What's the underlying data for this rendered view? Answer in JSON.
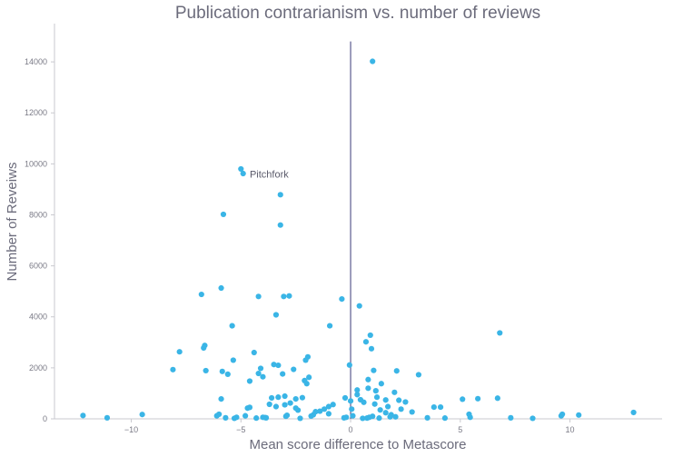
{
  "chart_data": {
    "type": "scatter",
    "title": "Publication contrarianism vs. number of reviews",
    "xlabel": "Mean score difference to Metascore",
    "ylabel": "Number of Reveiws",
    "xlim": [
      -13.5,
      14.2
    ],
    "ylim": [
      0,
      15500
    ],
    "xticks": [
      -10,
      -5,
      0,
      5,
      10
    ],
    "xtick_labels": [
      "−10",
      "−5",
      "0",
      "5",
      "10"
    ],
    "yticks": [
      0,
      2000,
      4000,
      6000,
      8000,
      10000,
      12000,
      14000
    ],
    "ytick_labels": [
      "0",
      "2000",
      "4000",
      "6000",
      "8000",
      "10000",
      "12000",
      "14000"
    ],
    "grid": false,
    "point_color": "#3ab5e6",
    "reference_line": {
      "x": 0,
      "y_range": [
        0,
        14800
      ],
      "color": "#5b5b8f"
    },
    "annotations": [
      {
        "text": "Pitchfork",
        "x": -4.6,
        "y": 9600
      }
    ],
    "points": [
      {
        "x": -12.2,
        "y": 130
      },
      {
        "x": -11.1,
        "y": 40
      },
      {
        "x": -9.5,
        "y": 170
      },
      {
        "x": -8.1,
        "y": 1930
      },
      {
        "x": -7.8,
        "y": 2630
      },
      {
        "x": -6.8,
        "y": 4880
      },
      {
        "x": -6.7,
        "y": 2780
      },
      {
        "x": -6.65,
        "y": 2880
      },
      {
        "x": -6.6,
        "y": 1890
      },
      {
        "x": -6.1,
        "y": 120
      },
      {
        "x": -6.0,
        "y": 180
      },
      {
        "x": -5.9,
        "y": 5130
      },
      {
        "x": -5.9,
        "y": 780
      },
      {
        "x": -5.85,
        "y": 1860
      },
      {
        "x": -5.8,
        "y": 8020
      },
      {
        "x": -5.7,
        "y": 40
      },
      {
        "x": -5.6,
        "y": 1750
      },
      {
        "x": -5.4,
        "y": 3650
      },
      {
        "x": -5.35,
        "y": 2300
      },
      {
        "x": -5.3,
        "y": 20
      },
      {
        "x": -5.2,
        "y": 60
      },
      {
        "x": -5.0,
        "y": 9800
      },
      {
        "x": -4.9,
        "y": 9620
      },
      {
        "x": -4.8,
        "y": 120
      },
      {
        "x": -4.7,
        "y": 420
      },
      {
        "x": -4.6,
        "y": 450
      },
      {
        "x": -4.6,
        "y": 1480
      },
      {
        "x": -4.4,
        "y": 2600
      },
      {
        "x": -4.3,
        "y": 30
      },
      {
        "x": -4.2,
        "y": 4800
      },
      {
        "x": -4.2,
        "y": 1780
      },
      {
        "x": -4.1,
        "y": 1980
      },
      {
        "x": -4.0,
        "y": 60
      },
      {
        "x": -4.0,
        "y": 1650
      },
      {
        "x": -3.9,
        "y": 50
      },
      {
        "x": -3.85,
        "y": 40
      },
      {
        "x": -3.7,
        "y": 570
      },
      {
        "x": -3.6,
        "y": 820
      },
      {
        "x": -3.5,
        "y": 2130
      },
      {
        "x": -3.4,
        "y": 4080
      },
      {
        "x": -3.4,
        "y": 480
      },
      {
        "x": -3.3,
        "y": 850
      },
      {
        "x": -3.3,
        "y": 2100
      },
      {
        "x": -3.2,
        "y": 8790
      },
      {
        "x": -3.2,
        "y": 7600
      },
      {
        "x": -3.1,
        "y": 1760
      },
      {
        "x": -3.05,
        "y": 4800
      },
      {
        "x": -3.0,
        "y": 550
      },
      {
        "x": -3.0,
        "y": 890
      },
      {
        "x": -2.95,
        "y": 100
      },
      {
        "x": -2.9,
        "y": 140
      },
      {
        "x": -2.8,
        "y": 4820
      },
      {
        "x": -2.75,
        "y": 620
      },
      {
        "x": -2.6,
        "y": 1940
      },
      {
        "x": -2.5,
        "y": 780
      },
      {
        "x": -2.5,
        "y": 420
      },
      {
        "x": -2.4,
        "y": 340
      },
      {
        "x": -2.3,
        "y": 20
      },
      {
        "x": -2.2,
        "y": 830
      },
      {
        "x": -2.1,
        "y": 1500
      },
      {
        "x": -2.05,
        "y": 2300
      },
      {
        "x": -2.0,
        "y": 1380
      },
      {
        "x": -1.95,
        "y": 2430
      },
      {
        "x": -1.9,
        "y": 1630
      },
      {
        "x": -1.8,
        "y": 110
      },
      {
        "x": -1.7,
        "y": 160
      },
      {
        "x": -1.6,
        "y": 280
      },
      {
        "x": -1.4,
        "y": 300
      },
      {
        "x": -1.2,
        "y": 380
      },
      {
        "x": -1.0,
        "y": 480
      },
      {
        "x": -1.0,
        "y": 200
      },
      {
        "x": -0.95,
        "y": 3650
      },
      {
        "x": -0.8,
        "y": 560
      },
      {
        "x": -0.4,
        "y": 4700
      },
      {
        "x": -0.3,
        "y": 40
      },
      {
        "x": -0.25,
        "y": 820
      },
      {
        "x": -0.2,
        "y": 60
      },
      {
        "x": -0.05,
        "y": 2110
      },
      {
        "x": 0.0,
        "y": 700
      },
      {
        "x": 0.05,
        "y": 380
      },
      {
        "x": 0.1,
        "y": 120
      },
      {
        "x": 0.3,
        "y": 950
      },
      {
        "x": 0.3,
        "y": 1130
      },
      {
        "x": 0.4,
        "y": 4430
      },
      {
        "x": 0.45,
        "y": 750
      },
      {
        "x": 0.55,
        "y": 20
      },
      {
        "x": 0.6,
        "y": 650
      },
      {
        "x": 0.7,
        "y": 3020
      },
      {
        "x": 0.75,
        "y": 30
      },
      {
        "x": 0.8,
        "y": 1540
      },
      {
        "x": 0.8,
        "y": 1200
      },
      {
        "x": 0.85,
        "y": 60
      },
      {
        "x": 0.9,
        "y": 3280
      },
      {
        "x": 0.95,
        "y": 2750
      },
      {
        "x": 1.0,
        "y": 14020
      },
      {
        "x": 1.0,
        "y": 100
      },
      {
        "x": 1.05,
        "y": 1900
      },
      {
        "x": 1.1,
        "y": 580
      },
      {
        "x": 1.15,
        "y": 1100
      },
      {
        "x": 1.2,
        "y": 850
      },
      {
        "x": 1.3,
        "y": 30
      },
      {
        "x": 1.35,
        "y": 350
      },
      {
        "x": 1.4,
        "y": 1380
      },
      {
        "x": 1.6,
        "y": 240
      },
      {
        "x": 1.6,
        "y": 740
      },
      {
        "x": 1.7,
        "y": 480
      },
      {
        "x": 1.8,
        "y": 80
      },
      {
        "x": 1.85,
        "y": 160
      },
      {
        "x": 2.0,
        "y": 1040
      },
      {
        "x": 2.05,
        "y": 80
      },
      {
        "x": 2.1,
        "y": 1880
      },
      {
        "x": 2.2,
        "y": 730
      },
      {
        "x": 2.3,
        "y": 380
      },
      {
        "x": 2.5,
        "y": 660
      },
      {
        "x": 2.8,
        "y": 270
      },
      {
        "x": 3.1,
        "y": 1730
      },
      {
        "x": 3.5,
        "y": 40
      },
      {
        "x": 3.8,
        "y": 460
      },
      {
        "x": 4.1,
        "y": 460
      },
      {
        "x": 4.3,
        "y": 30
      },
      {
        "x": 5.1,
        "y": 770
      },
      {
        "x": 5.4,
        "y": 180
      },
      {
        "x": 5.45,
        "y": 60
      },
      {
        "x": 5.8,
        "y": 790
      },
      {
        "x": 6.7,
        "y": 810
      },
      {
        "x": 6.8,
        "y": 3370
      },
      {
        "x": 7.3,
        "y": 40
      },
      {
        "x": 8.3,
        "y": 20
      },
      {
        "x": 9.6,
        "y": 120
      },
      {
        "x": 9.65,
        "y": 180
      },
      {
        "x": 10.4,
        "y": 150
      },
      {
        "x": 12.9,
        "y": 250
      }
    ]
  }
}
